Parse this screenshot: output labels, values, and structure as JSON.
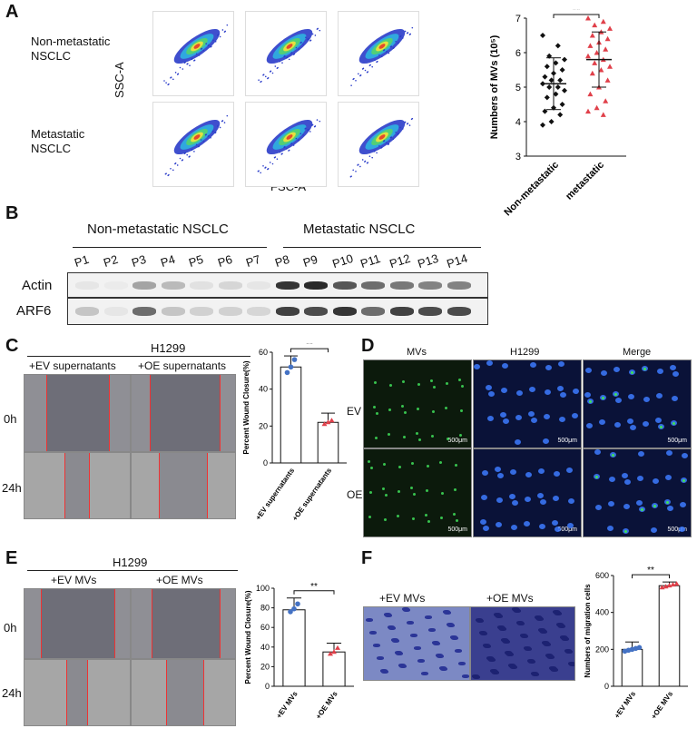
{
  "panelA": {
    "letter": "A",
    "row1_label": "Non-metastatic NSCLC",
    "row2_label": "Metastatic NSCLC",
    "ylabel": "SSC-A",
    "xlabel": "FSC-A"
  },
  "panelB": {
    "letter": "B",
    "group1": "Non-metastatic NSCLC",
    "group2": "Metastatic NSCLC",
    "lanes": [
      "P1",
      "P2",
      "P3",
      "P4",
      "P5",
      "P6",
      "P7",
      "P8",
      "P9",
      "P10",
      "P11",
      "P12",
      "P13",
      "P14"
    ],
    "row1": "Actin",
    "row2": "ARF6"
  },
  "panelC": {
    "letter": "C",
    "cell": "H1299",
    "cond1": "+EV supernatants",
    "cond2": "+OE supernatants",
    "t0": "0h",
    "t24": "24h"
  },
  "panelD": {
    "letter": "D",
    "col1": "MVs",
    "col2": "H1299",
    "col3": "Merge",
    "row1": "EV",
    "row2": "OE",
    "scale": "500μm"
  },
  "panelE": {
    "letter": "E",
    "cell": "H1299",
    "cond1": "+EV MVs",
    "cond2": "+OE MVs",
    "t0": "0h",
    "t24": "24h"
  },
  "panelF": {
    "letter": "F",
    "cond1": "+EV MVs",
    "cond2": "+OE MVs"
  },
  "chart_data": [
    {
      "id": "A",
      "type": "scatter",
      "ylabel": "Numbers of MVs (10⁵)",
      "categories": [
        "Non-metastatic",
        "metastatic"
      ],
      "ylim": [
        3,
        7
      ],
      "yticks": [
        3,
        4,
        5,
        6,
        7
      ],
      "significance": "**",
      "series": [
        {
          "name": "Non-metastatic",
          "color": "#111111",
          "marker": "diamond",
          "values": [
            6.5,
            6.2,
            5.9,
            5.8,
            5.7,
            5.6,
            5.5,
            5.4,
            5.3,
            5.2,
            5.2,
            5.1,
            5.0,
            5.0,
            4.9,
            4.8,
            4.7,
            4.5,
            4.4,
            4.3,
            4.2,
            4.0,
            3.9
          ],
          "mean": 5.1,
          "sd": 0.75
        },
        {
          "name": "metastatic",
          "color": "#e0404a",
          "marker": "triangle",
          "values": [
            7.0,
            6.9,
            6.8,
            6.7,
            6.6,
            6.5,
            6.4,
            6.3,
            6.2,
            6.1,
            6.0,
            5.9,
            5.8,
            5.7,
            5.6,
            5.5,
            5.4,
            5.2,
            5.0,
            4.8,
            4.6,
            4.4,
            4.3,
            4.2
          ],
          "mean": 5.8,
          "sd": 0.8
        }
      ]
    },
    {
      "id": "C",
      "type": "bar",
      "ylabel": "Percent Wound Closure(%)",
      "categories": [
        "+EV supernatants",
        "+OE supernatants"
      ],
      "values": [
        52,
        22
      ],
      "error": [
        6,
        5
      ],
      "points": [
        [
          49,
          52,
          56
        ],
        [
          21,
          22,
          23
        ]
      ],
      "point_colors": [
        "#4472c4",
        "#e0404a"
      ],
      "ylim": [
        0,
        60
      ],
      "yticks": [
        0,
        20,
        40,
        60
      ],
      "significance": "**"
    },
    {
      "id": "E",
      "type": "bar",
      "ylabel": "Percent Wound Closure(%)",
      "categories": [
        "+EV MVs",
        "+OE MVs"
      ],
      "values": [
        78,
        35
      ],
      "error": [
        12,
        9
      ],
      "points": [
        [
          76,
          79,
          84
        ],
        [
          33,
          35,
          39
        ]
      ],
      "point_colors": [
        "#4472c4",
        "#e0404a"
      ],
      "ylim": [
        0,
        100
      ],
      "yticks": [
        0,
        20,
        40,
        60,
        80,
        100
      ],
      "significance": "**"
    },
    {
      "id": "F",
      "type": "bar",
      "ylabel": "Numbers of migration cells",
      "categories": [
        "+EV MVs",
        "+OE MVs"
      ],
      "values": [
        200,
        545
      ],
      "error": [
        40,
        20
      ],
      "points": [
        [
          190,
          195,
          200,
          205,
          210
        ],
        [
          535,
          540,
          545,
          550,
          555
        ]
      ],
      "point_colors": [
        "#4472c4",
        "#e0404a"
      ],
      "ylim": [
        0,
        600
      ],
      "yticks": [
        0,
        200,
        400,
        600
      ],
      "significance": "**"
    }
  ]
}
